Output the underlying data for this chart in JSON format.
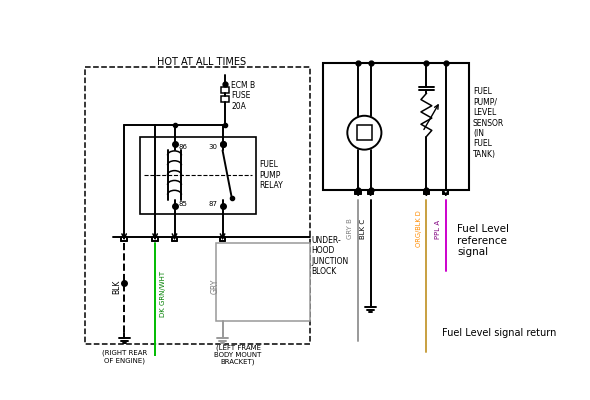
{
  "bg_color": "#ffffff",
  "black": "#000000",
  "green": "#00bb00",
  "gray": "#999999",
  "orange": "#c8a040",
  "purple": "#cc00cc",
  "labels": {
    "hot_at_all_times": "HOT AT ALL TIMES",
    "ecm_b_fuse": "ECM B\nFUSE\n20A",
    "fuel_pump_relay": "FUEL\nPUMP\nRELAY",
    "underhood": "UNDER-\nHOOD\nJUNCTION\nBLOCK",
    "fuel_pump_sensor": "FUEL\nPUMP/\nLEVEL\nSENSOR\n(IN\nFUEL\nTANK)",
    "blk": "BLK",
    "dk_grn_wht": "DK GRN/WHT",
    "gry": "GRY",
    "gry_b": "GRY B",
    "blk_c": "BLK C",
    "org_blk_d": "ORG/BLK D",
    "ppl_a": "PPL A",
    "right_rear": "(RIGHT REAR\nOF ENGINE)",
    "left_frame": "(LEFT FRAME\nBODY MOUNT\nBRACKET)",
    "fuel_level_ref": "Fuel Level\nreference\nsignal",
    "fuel_level_return": "Fuel Level signal return",
    "pin86": "86",
    "pin30": "30",
    "pin85": "85",
    "pin87": "87",
    "motor": "M"
  }
}
